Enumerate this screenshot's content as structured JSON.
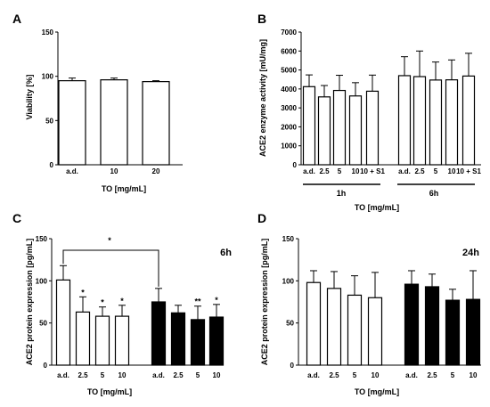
{
  "chart_data": [
    {
      "panel": "A",
      "type": "bar",
      "ylabel": "Viability [%]",
      "xlabel": "TO [mg/mL]",
      "ylim": [
        0,
        150
      ],
      "yticks": [
        "0",
        "50",
        "100",
        "150"
      ],
      "categories": [
        "a.d.",
        "10",
        "20"
      ],
      "series": [
        {
          "values": [
            95,
            96,
            94
          ],
          "errors": [
            3,
            2,
            1
          ],
          "fill": "#ffffff"
        }
      ]
    },
    {
      "panel": "B",
      "type": "bar",
      "ylabel": "ACE2 enzyme activity [mU/mg]",
      "xlabel": "TO [mg/mL]",
      "ylim": [
        0,
        7000
      ],
      "yticks": [
        "0",
        "1000",
        "2000",
        "3000",
        "4000",
        "5000",
        "6000",
        "7000"
      ],
      "categories": [
        "a.d.",
        "2.5",
        "5",
        "10",
        "10 + S1",
        "a.d.",
        "2.5",
        "5",
        "10",
        "10 + S1"
      ],
      "groups": [
        "1h",
        "6h"
      ],
      "series": [
        {
          "values": [
            4120,
            3580,
            3920,
            3630,
            3880,
            4700,
            4650,
            4470,
            4480,
            4680
          ],
          "errors": [
            620,
            600,
            800,
            700,
            850,
            1000,
            1350,
            950,
            1050,
            1200
          ],
          "fill": "#ffffff"
        }
      ]
    },
    {
      "panel": "C",
      "type": "bar",
      "annotation": "6h",
      "ylabel": "ACE2 protein expression [pg/mL]",
      "xlabel": "TO [mg/mL]",
      "ylim": [
        0,
        150
      ],
      "yticks": [
        "0",
        "50",
        "100",
        "150"
      ],
      "categories": [
        "a.d.",
        "2.5",
        "5",
        "10",
        "a.d.",
        "2.5",
        "5",
        "10"
      ],
      "series": [
        {
          "values": [
            101,
            63,
            58,
            58,
            75,
            62,
            54,
            57
          ],
          "errors": [
            17,
            18,
            11,
            13,
            16,
            9,
            16,
            15
          ],
          "fills": [
            "#ffffff",
            "#ffffff",
            "#ffffff",
            "#ffffff",
            "#000000",
            "#000000",
            "#000000",
            "#000000"
          ],
          "significance": [
            "",
            "*",
            "*",
            "*",
            "",
            "",
            "**",
            "*"
          ]
        }
      ],
      "bracket_label": "*"
    },
    {
      "panel": "D",
      "type": "bar",
      "annotation": "24h",
      "ylabel": "ACE2 protein expression [pg/mL]",
      "xlabel": "TO [mg/mL]",
      "ylim": [
        0,
        150
      ],
      "yticks": [
        "0",
        "50",
        "100",
        "150"
      ],
      "categories": [
        "a.d.",
        "2.5",
        "5",
        "10",
        "a.d.",
        "2.5",
        "5",
        "10"
      ],
      "series": [
        {
          "values": [
            98,
            91,
            83,
            80,
            96,
            93,
            77,
            78
          ],
          "errors": [
            14,
            20,
            23,
            30,
            16,
            15,
            13,
            34
          ],
          "fills": [
            "#ffffff",
            "#ffffff",
            "#ffffff",
            "#ffffff",
            "#000000",
            "#000000",
            "#000000",
            "#000000"
          ]
        }
      ]
    }
  ]
}
